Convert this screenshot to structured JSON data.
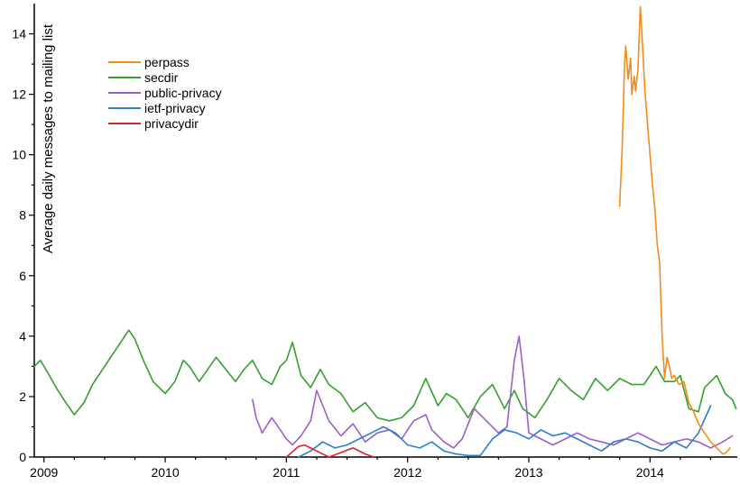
{
  "chart_data": {
    "type": "line",
    "title": "",
    "xlabel": "",
    "ylabel": "Average daily messages to mailing list",
    "xlim": [
      2008.92,
      2014.72
    ],
    "ylim": [
      0,
      15
    ],
    "x_ticks": [
      2009,
      2010,
      2011,
      2012,
      2013,
      2014
    ],
    "x_tick_labels": [
      "2009",
      "2010",
      "2011",
      "2012",
      "2013",
      "2014"
    ],
    "y_ticks": [
      0,
      2,
      4,
      6,
      8,
      10,
      12,
      14
    ],
    "y_tick_labels": [
      "0",
      "2",
      "4",
      "6",
      "8",
      "10",
      "12",
      "14"
    ],
    "grid": false,
    "legend": "top-left",
    "series": [
      {
        "name": "perpass",
        "color": "#f28c1c",
        "x": [
          2013.75,
          2013.77,
          2013.79,
          2013.8,
          2013.82,
          2013.84,
          2013.85,
          2013.87,
          2013.88,
          2013.9,
          2013.92,
          2013.94,
          2013.96,
          2013.98,
          2014.0,
          2014.02,
          2014.04,
          2014.06,
          2014.08,
          2014.1,
          2014.12,
          2014.14,
          2014.16,
          2014.18,
          2014.2,
          2014.24,
          2014.28,
          2014.32,
          2014.36,
          2014.4,
          2014.45,
          2014.5,
          2014.55,
          2014.6,
          2014.63,
          2014.66
        ],
        "y": [
          8.3,
          10.2,
          13.0,
          13.6,
          12.5,
          13.2,
          12.0,
          12.6,
          12.1,
          12.8,
          14.9,
          13.5,
          12.0,
          11.0,
          10.0,
          9.0,
          8.2,
          7.0,
          6.4,
          4.0,
          2.6,
          3.3,
          3.0,
          2.6,
          2.7,
          2.4,
          2.5,
          1.8,
          1.5,
          1.1,
          0.8,
          0.5,
          0.3,
          0.1,
          0.15,
          0.3
        ]
      },
      {
        "name": "secdir",
        "color": "#34a02c",
        "x": [
          2008.92,
          2008.97,
          2009.03,
          2009.1,
          2009.18,
          2009.25,
          2009.33,
          2009.4,
          2009.5,
          2009.6,
          2009.7,
          2009.75,
          2009.82,
          2009.9,
          2010.0,
          2010.08,
          2010.15,
          2010.2,
          2010.28,
          2010.35,
          2010.42,
          2010.5,
          2010.58,
          2010.65,
          2010.72,
          2010.8,
          2010.88,
          2010.95,
          2011.0,
          2011.05,
          2011.12,
          2011.2,
          2011.28,
          2011.35,
          2011.45,
          2011.55,
          2011.65,
          2011.75,
          2011.85,
          2011.95,
          2012.05,
          2012.15,
          2012.25,
          2012.32,
          2012.4,
          2012.5,
          2012.6,
          2012.7,
          2012.8,
          2012.88,
          2012.95,
          2013.05,
          2013.15,
          2013.25,
          2013.35,
          2013.45,
          2013.55,
          2013.65,
          2013.75,
          2013.85,
          2013.95,
          2014.0,
          2014.05,
          2014.12,
          2014.2,
          2014.25,
          2014.32,
          2014.4,
          2014.45,
          2014.5,
          2014.55,
          2014.62,
          2014.68,
          2014.71
        ],
        "y": [
          3.0,
          3.2,
          2.8,
          2.3,
          1.8,
          1.4,
          1.8,
          2.4,
          3.0,
          3.6,
          4.2,
          3.9,
          3.2,
          2.5,
          2.1,
          2.5,
          3.2,
          3.0,
          2.5,
          2.9,
          3.3,
          2.9,
          2.5,
          2.9,
          3.2,
          2.6,
          2.4,
          3.0,
          3.2,
          3.8,
          2.7,
          2.3,
          2.9,
          2.4,
          2.1,
          1.5,
          1.8,
          1.3,
          1.2,
          1.3,
          1.7,
          2.6,
          1.7,
          2.1,
          1.9,
          1.3,
          2.0,
          2.4,
          1.6,
          2.2,
          1.6,
          1.3,
          1.9,
          2.6,
          2.2,
          1.9,
          2.6,
          2.2,
          2.6,
          2.4,
          2.4,
          2.7,
          3.0,
          2.5,
          2.5,
          2.7,
          1.6,
          1.5,
          2.3,
          2.5,
          2.7,
          2.1,
          1.9,
          1.6
        ]
      },
      {
        "name": "public-privacy",
        "color": "#9a5fc8",
        "x": [
          2010.72,
          2010.75,
          2010.8,
          2010.88,
          2010.95,
          2011.0,
          2011.05,
          2011.12,
          2011.2,
          2011.25,
          2011.3,
          2011.35,
          2011.45,
          2011.55,
          2011.65,
          2011.75,
          2011.85,
          2011.95,
          2012.05,
          2012.15,
          2012.2,
          2012.25,
          2012.3,
          2012.38,
          2012.45,
          2012.55,
          2012.65,
          2012.75,
          2012.82,
          2012.88,
          2012.92,
          2012.96,
          2013.0,
          2013.1,
          2013.2,
          2013.3,
          2013.4,
          2013.5,
          2013.6,
          2013.7,
          2013.8,
          2013.9,
          2014.0,
          2014.1,
          2014.2,
          2014.3,
          2014.4,
          2014.5,
          2014.6,
          2014.68
        ],
        "y": [
          1.9,
          1.3,
          0.8,
          1.3,
          0.9,
          0.6,
          0.4,
          0.7,
          1.2,
          2.2,
          1.7,
          1.2,
          0.7,
          1.1,
          0.5,
          0.8,
          0.9,
          0.6,
          1.2,
          1.4,
          0.9,
          0.7,
          0.5,
          0.3,
          0.6,
          1.6,
          1.2,
          0.8,
          1.0,
          3.2,
          4.0,
          2.6,
          0.8,
          0.6,
          0.4,
          0.6,
          0.8,
          0.6,
          0.5,
          0.4,
          0.6,
          0.8,
          0.6,
          0.4,
          0.5,
          0.6,
          0.5,
          0.3,
          0.5,
          0.7
        ]
      },
      {
        "name": "ietf-privacy",
        "color": "#2b7fcf",
        "x": [
          2011.1,
          2011.2,
          2011.3,
          2011.4,
          2011.5,
          2011.6,
          2011.7,
          2011.8,
          2011.9,
          2012.0,
          2012.1,
          2012.2,
          2012.3,
          2012.4,
          2012.5,
          2012.6,
          2012.7,
          2012.8,
          2012.9,
          2013.0,
          2013.1,
          2013.2,
          2013.3,
          2013.4,
          2013.5,
          2013.6,
          2013.7,
          2013.8,
          2013.9,
          2014.0,
          2014.1,
          2014.2,
          2014.3,
          2014.4,
          2014.5
        ],
        "y": [
          0.0,
          0.2,
          0.5,
          0.3,
          0.4,
          0.6,
          0.8,
          1.0,
          0.8,
          0.4,
          0.3,
          0.5,
          0.2,
          0.1,
          0.05,
          0.05,
          0.6,
          0.9,
          0.8,
          0.6,
          0.9,
          0.7,
          0.8,
          0.6,
          0.4,
          0.2,
          0.5,
          0.6,
          0.5,
          0.3,
          0.2,
          0.5,
          0.3,
          0.8,
          1.7
        ]
      },
      {
        "name": "privacydir",
        "color": "#d6262a",
        "x": [
          2011.0,
          2011.1,
          2011.15,
          2011.25,
          2011.35,
          2011.45,
          2011.55,
          2011.65,
          2011.72
        ],
        "y": [
          0.0,
          0.35,
          0.4,
          0.2,
          0.0,
          0.15,
          0.3,
          0.1,
          0.0
        ]
      }
    ]
  }
}
